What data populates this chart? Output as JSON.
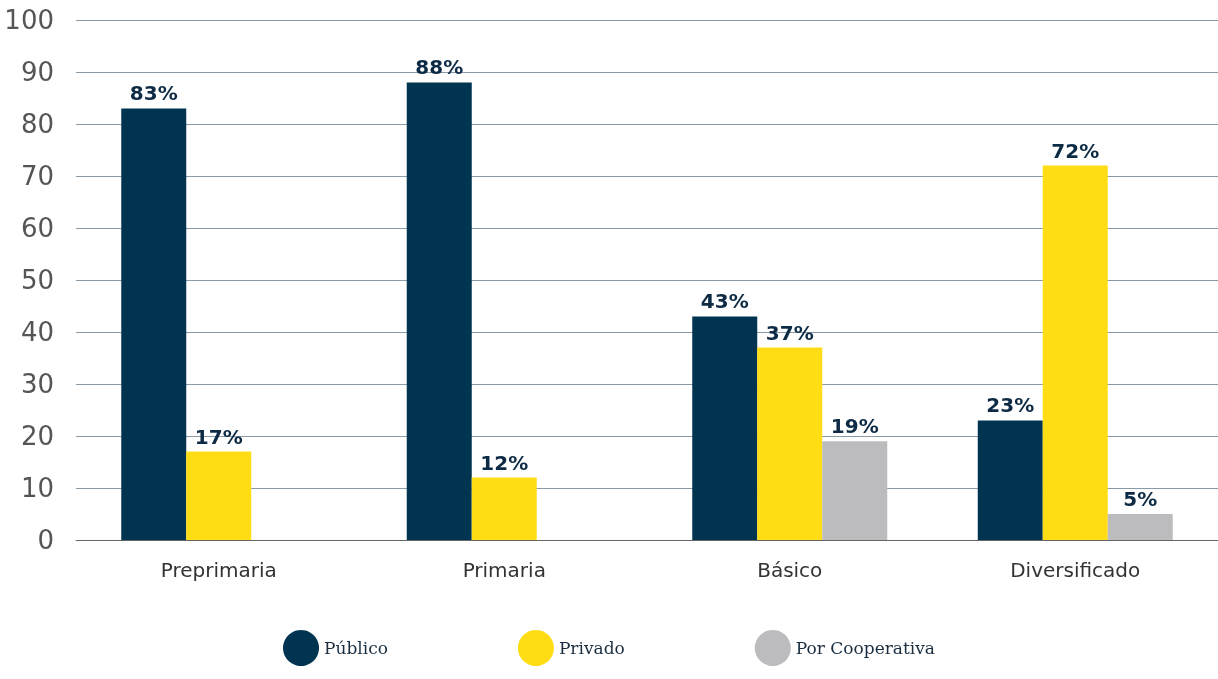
{
  "chart_data": {
    "type": "bar",
    "categories": [
      "Preprimaria",
      "Primaria",
      "Básico",
      "Diversificado"
    ],
    "series": [
      {
        "name": "Público",
        "color": "#003450",
        "values": [
          83,
          88,
          43,
          23
        ],
        "value_labels": [
          "83%",
          "88%",
          "43%",
          "23%"
        ]
      },
      {
        "name": "Privado",
        "color": "#ffdd15",
        "values": [
          17,
          12,
          37,
          72
        ],
        "value_labels": [
          "17%",
          "12%",
          "37%",
          "72%"
        ]
      },
      {
        "name": "Por Cooperativa",
        "color": "#bcbcbe",
        "values": [
          null,
          null,
          19,
          5
        ],
        "value_labels": [
          null,
          null,
          "19%",
          "5%"
        ]
      }
    ],
    "ylim": [
      0,
      100
    ],
    "yticks": [
      0,
      10,
      20,
      30,
      40,
      50,
      60,
      70,
      80,
      90,
      100
    ],
    "grid": "y",
    "legend": "bottom"
  }
}
